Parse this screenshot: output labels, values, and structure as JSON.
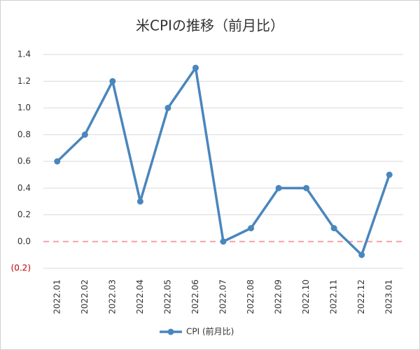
{
  "chart_data": {
    "type": "line",
    "title": "米CPIの推移（前月比）",
    "categories": [
      "2022.01",
      "2022.02",
      "2022.03",
      "2022.04",
      "2022.05",
      "2022.06",
      "2022.07",
      "2022.08",
      "2022.09",
      "2022.10",
      "2022.11",
      "2022.12",
      "2023.01"
    ],
    "series": [
      {
        "name": "CPI (前月比)",
        "color": "#4a86bd",
        "values": [
          0.6,
          0.8,
          1.2,
          0.3,
          1.0,
          1.3,
          0.0,
          0.1,
          0.4,
          0.4,
          0.1,
          -0.1,
          0.5
        ]
      }
    ],
    "ylim": [
      -0.2,
      1.4
    ],
    "yticks": [
      {
        "value": -0.2,
        "label": "(0.2)"
      },
      {
        "value": 0,
        "label": "0.0"
      },
      0.2,
      0.4,
      0.6,
      0.8,
      {
        "value": 1,
        "label": "1.0"
      },
      1.2,
      1.4
    ],
    "grid": true,
    "legend": "bottom"
  }
}
